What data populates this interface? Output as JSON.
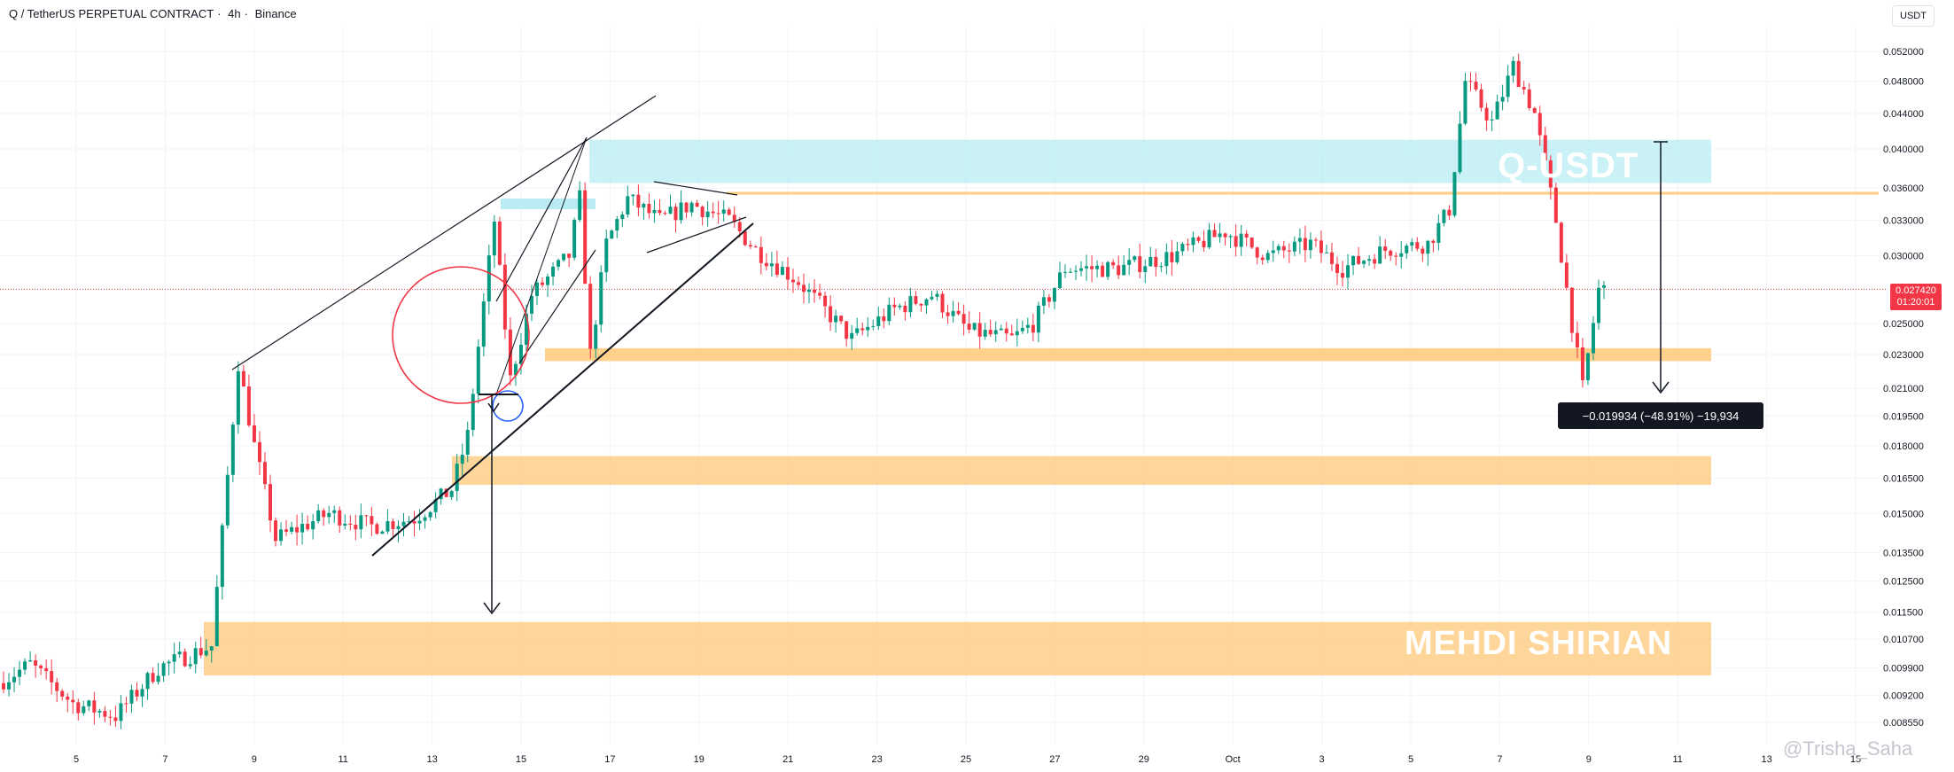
{
  "header": {
    "symbol": "Q / TetherUS PERPETUAL CONTRACT",
    "interval": "4h",
    "exchange": "Binance"
  },
  "price_axis": {
    "unit": "USDT",
    "ticks": [
      "0.052000",
      "0.048000",
      "0.044000",
      "0.040000",
      "0.036000",
      "0.033000",
      "0.030000",
      "0.025000",
      "0.023000",
      "0.021000",
      "0.019500",
      "0.018000",
      "0.016500",
      "0.015000",
      "0.013500",
      "0.012500",
      "0.011500",
      "0.010700",
      "0.009900",
      "0.009200",
      "0.008550"
    ]
  },
  "time_axis": {
    "ticks": [
      "5",
      "7",
      "9",
      "11",
      "13",
      "15",
      "17",
      "19",
      "21",
      "23",
      "25",
      "27",
      "29",
      "Oct",
      "3",
      "5",
      "7",
      "9",
      "11",
      "13",
      "15"
    ]
  },
  "current_price": {
    "value": "0.027420",
    "countdown": "01:20:01",
    "color": "#f23645"
  },
  "measurement_label": "−0.019934 (−48.91%) −19,934",
  "annotations": {
    "watermark_top": "Q-USDT",
    "watermark_bottom": "MEHDI SHIRIAN",
    "credit": "@Trisha_Saha"
  },
  "colors": {
    "up": "#089981",
    "down": "#f23645",
    "supply_zone": "#b2ebf2",
    "demand_zone": "#ffcc80",
    "resistance_line": "#ffcc80"
  },
  "chart_data": {
    "type": "candlestick",
    "title": "Q / TetherUS PERPETUAL CONTRACT · 4h · Binance",
    "y_unit": "USDT",
    "y_scale": "log",
    "ylim": [
      0.0082,
      0.056
    ],
    "x_range": [
      "Sep 4",
      "Oct 15"
    ],
    "grid": true,
    "legend": "none",
    "x_ticks": [
      "5",
      "7",
      "9",
      "11",
      "13",
      "15",
      "17",
      "19",
      "21",
      "23",
      "25",
      "27",
      "29",
      "Oct",
      "3",
      "5",
      "7",
      "9",
      "11",
      "13",
      "15"
    ],
    "y_ticks": [
      0.052,
      0.048,
      0.044,
      0.04,
      0.036,
      0.033,
      0.03,
      0.025,
      0.023,
      0.021,
      0.0195,
      0.018,
      0.0165,
      0.015,
      0.0135,
      0.0125,
      0.0115,
      0.0107,
      0.0099,
      0.0092,
      0.00855
    ],
    "waypoints": [
      {
        "t": 0,
        "p": 0.0095
      },
      {
        "t": 6,
        "p": 0.01
      },
      {
        "t": 14,
        "p": 0.009
      },
      {
        "t": 22,
        "p": 0.0087
      },
      {
        "t": 30,
        "p": 0.0099
      },
      {
        "t": 40,
        "p": 0.0105
      },
      {
        "t": 45,
        "p": 0.0225
      },
      {
        "t": 48,
        "p": 0.018
      },
      {
        "t": 52,
        "p": 0.014
      },
      {
        "t": 62,
        "p": 0.015
      },
      {
        "t": 70,
        "p": 0.0145
      },
      {
        "t": 78,
        "p": 0.0148
      },
      {
        "t": 85,
        "p": 0.016
      },
      {
        "t": 88,
        "p": 0.0185
      },
      {
        "t": 90,
        "p": 0.0235
      },
      {
        "t": 93,
        "p": 0.033
      },
      {
        "t": 96,
        "p": 0.0215
      },
      {
        "t": 100,
        "p": 0.027
      },
      {
        "t": 107,
        "p": 0.03
      },
      {
        "t": 109,
        "p": 0.035
      },
      {
        "t": 111,
        "p": 0.023
      },
      {
        "t": 114,
        "p": 0.031
      },
      {
        "t": 118,
        "p": 0.035
      },
      {
        "t": 124,
        "p": 0.033
      },
      {
        "t": 130,
        "p": 0.0345
      },
      {
        "t": 137,
        "p": 0.033
      },
      {
        "t": 142,
        "p": 0.0305
      },
      {
        "t": 150,
        "p": 0.028
      },
      {
        "t": 160,
        "p": 0.024
      },
      {
        "t": 168,
        "p": 0.026
      },
      {
        "t": 175,
        "p": 0.027
      },
      {
        "t": 182,
        "p": 0.0245
      },
      {
        "t": 190,
        "p": 0.024
      },
      {
        "t": 194,
        "p": 0.025
      },
      {
        "t": 200,
        "p": 0.029
      },
      {
        "t": 210,
        "p": 0.029
      },
      {
        "t": 220,
        "p": 0.03
      },
      {
        "t": 230,
        "p": 0.032
      },
      {
        "t": 238,
        "p": 0.03
      },
      {
        "t": 246,
        "p": 0.031
      },
      {
        "t": 252,
        "p": 0.029
      },
      {
        "t": 260,
        "p": 0.0305
      },
      {
        "t": 268,
        "p": 0.031
      },
      {
        "t": 272,
        "p": 0.034
      },
      {
        "t": 275,
        "p": 0.048
      },
      {
        "t": 280,
        "p": 0.043
      },
      {
        "t": 284,
        "p": 0.05
      },
      {
        "t": 288,
        "p": 0.044
      },
      {
        "t": 292,
        "p": 0.033
      },
      {
        "t": 295,
        "p": 0.025
      },
      {
        "t": 297,
        "p": 0.021
      },
      {
        "t": 300,
        "p": 0.0274
      }
    ],
    "zones": [
      {
        "kind": "supply",
        "from": 0.0365,
        "to": 0.041
      },
      {
        "kind": "supply",
        "from": 0.034,
        "to": 0.035
      },
      {
        "kind": "demand",
        "from": 0.0226,
        "to": 0.0234
      },
      {
        "kind": "demand",
        "from": 0.0162,
        "to": 0.0175
      },
      {
        "kind": "demand",
        "from": 0.0097,
        "to": 0.0112
      }
    ],
    "levels": [
      {
        "kind": "resistance",
        "value": 0.0355
      },
      {
        "kind": "last_price",
        "value": 0.02742
      }
    ],
    "measure": {
      "from": 0.041,
      "to": 0.021,
      "label": "−0.019934 (−48.91%) −19,934"
    }
  }
}
